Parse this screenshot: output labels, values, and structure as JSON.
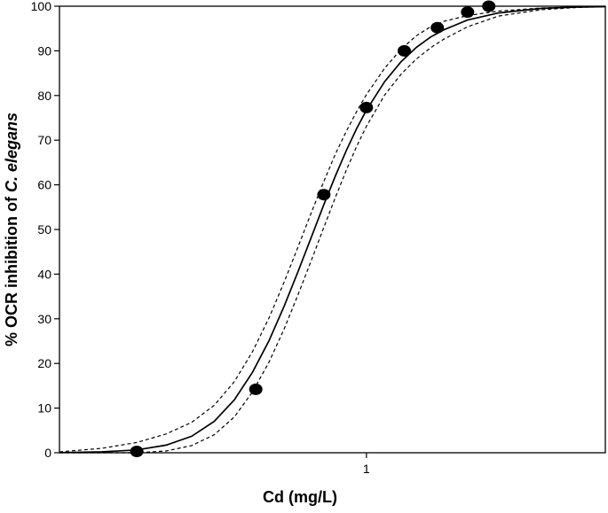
{
  "chart_data": {
    "type": "scatter",
    "title": "",
    "xlabel": "Cd  (mg/L)",
    "ylabel_parts": [
      {
        "text": "% OCR inhibition of ",
        "italic": false
      },
      {
        "text": "C. elegans",
        "italic": true
      }
    ],
    "x_scale": "log",
    "xlim": [
      0.2,
      3.5
    ],
    "ylim": [
      0,
      100
    ],
    "x_ticks": [
      1
    ],
    "x_tick_labels": [
      "1"
    ],
    "y_ticks": [
      0,
      10,
      20,
      30,
      40,
      50,
      60,
      70,
      80,
      90,
      100
    ],
    "y_tick_labels": [
      "0",
      "10",
      "20",
      "30",
      "40",
      "50",
      "60",
      "70",
      "80",
      "90",
      "100"
    ],
    "grid": false,
    "legend": "none",
    "series": [
      {
        "kind": "points",
        "x": [
          0.3,
          0.56,
          0.8,
          1.0,
          1.22,
          1.45,
          1.7,
          1.9
        ],
        "y": [
          0.3,
          14.2,
          57.8,
          77.3,
          90.0,
          95.2,
          98.7,
          100.0
        ]
      },
      {
        "kind": "fit-line",
        "style": "solid",
        "x": [
          0.2,
          0.25,
          0.3,
          0.35,
          0.4,
          0.45,
          0.5,
          0.55,
          0.6,
          0.65,
          0.7,
          0.75,
          0.8,
          0.85,
          0.9,
          0.95,
          1.0,
          1.1,
          1.2,
          1.3,
          1.4,
          1.5,
          1.7,
          2.0,
          2.5,
          3.0,
          3.5
        ],
        "y": [
          0.04,
          0.19,
          0.63,
          1.7,
          3.7,
          7.0,
          11.8,
          18.0,
          25.1,
          32.9,
          40.8,
          48.4,
          55.6,
          62.0,
          67.7,
          72.6,
          76.7,
          83.1,
          87.6,
          90.8,
          93.1,
          94.7,
          96.9,
          98.5,
          99.5,
          99.8,
          99.9
        ]
      },
      {
        "kind": "confidence-upper",
        "style": "dashed",
        "x": [
          0.2,
          0.25,
          0.3,
          0.35,
          0.4,
          0.45,
          0.5,
          0.55,
          0.6,
          0.65,
          0.7,
          0.75,
          0.8,
          0.85,
          0.9,
          0.95,
          1.0,
          1.1,
          1.2,
          1.3,
          1.4,
          1.5,
          1.7,
          2.0,
          2.5,
          3.0,
          3.5
        ],
        "y": [
          0.2,
          1.0,
          2.3,
          4.2,
          6.8,
          10.6,
          15.9,
          22.6,
          30.2,
          38.3,
          46.3,
          53.9,
          60.8,
          66.9,
          72.0,
          76.4,
          80.2,
          86.1,
          90.4,
          93.4,
          95.4,
          96.6,
          97.9,
          98.9,
          99.6,
          99.8,
          99.9
        ]
      },
      {
        "kind": "confidence-lower",
        "style": "dashed",
        "x": [
          0.2,
          0.25,
          0.3,
          0.35,
          0.4,
          0.45,
          0.5,
          0.55,
          0.6,
          0.65,
          0.7,
          0.75,
          0.8,
          0.85,
          0.9,
          0.95,
          1.0,
          1.1,
          1.2,
          1.3,
          1.4,
          1.5,
          1.7,
          2.0,
          2.5,
          3.0,
          3.5
        ],
        "y": [
          0.0,
          0.0,
          0.0,
          0.4,
          1.6,
          4.0,
          8.0,
          13.6,
          20.3,
          27.8,
          35.6,
          43.2,
          50.5,
          57.2,
          63.3,
          68.6,
          73.1,
          80.1,
          84.8,
          88.2,
          90.7,
          92.6,
          95.4,
          97.8,
          99.2,
          99.7,
          99.9
        ]
      }
    ]
  }
}
